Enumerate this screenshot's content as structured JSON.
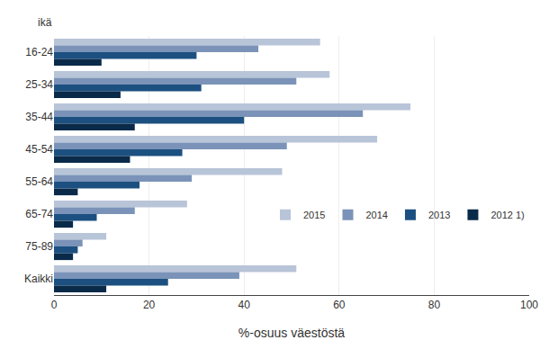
{
  "chart_data": {
    "type": "bar",
    "orientation": "horizontal",
    "categories": [
      "16-24",
      "25-34",
      "35-44",
      "45-54",
      "55-64",
      "65-74",
      "75-89",
      "Kaikki"
    ],
    "series": [
      {
        "name": "2015",
        "color": "#b8c4d8",
        "values": [
          56,
          58,
          75,
          68,
          48,
          28,
          11,
          51
        ]
      },
      {
        "name": "2014",
        "color": "#7b93b8",
        "values": [
          43,
          51,
          65,
          49,
          29,
          17,
          6,
          39
        ]
      },
      {
        "name": "2013",
        "color": "#1c5080",
        "values": [
          30,
          31,
          40,
          27,
          18,
          9,
          5,
          24
        ]
      },
      {
        "name": "2012 1)",
        "color": "#0a2a4a",
        "values": [
          10,
          14,
          17,
          16,
          5,
          4,
          4,
          11
        ]
      }
    ],
    "xlabel": "%-osuus väestöstä",
    "ylabel": "ikä",
    "xlim": [
      0,
      100
    ],
    "xticks": [
      0,
      20,
      40,
      60,
      80,
      100
    ],
    "grid": true,
    "legend": "right"
  }
}
